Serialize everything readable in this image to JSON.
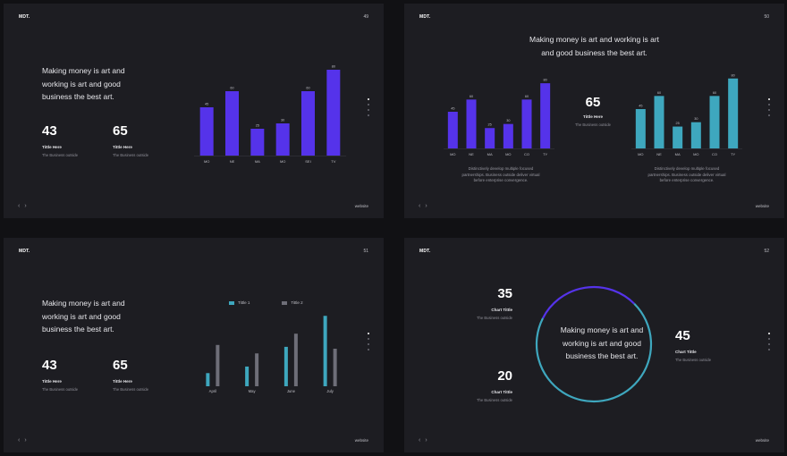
{
  "slides": [
    {
      "logo": "MDT.",
      "page": "49",
      "headline": [
        "Making money is art and",
        "working is art and good",
        "business the best art."
      ],
      "stats": [
        {
          "num": "43",
          "title": "Tittle Here",
          "sub": "The Business outside"
        },
        {
          "num": "65",
          "title": "Tittle Here",
          "sub": "The Business outside"
        }
      ],
      "website": "website",
      "nav": [
        "‹",
        "›"
      ]
    },
    {
      "logo": "MDT.",
      "page": "50",
      "headline": [
        "Making money is art and working is art",
        "and good business the best art."
      ],
      "stat": {
        "num": "65",
        "title": "Tittle Here",
        "sub": "The Business outside"
      },
      "desc_left": [
        "Distinctively develop multiple focused",
        "partnerships. Business outside deliver virtual",
        "before enterprise convergence."
      ],
      "desc_right": [
        "Distinctively develop multiple focused",
        "partnerships. Business outside deliver virtual",
        "before enterprise convergence."
      ],
      "website": "website",
      "nav": [
        "‹",
        "›"
      ]
    },
    {
      "logo": "MDT.",
      "page": "51",
      "headline": [
        "Making money is art and",
        "working is art and good",
        "business the best art."
      ],
      "stats": [
        {
          "num": "43",
          "title": "Tittle Here",
          "sub": "The Business outside"
        },
        {
          "num": "65",
          "title": "Tittle Here",
          "sub": "The Business outside"
        }
      ],
      "legend": [
        "Tittle 1",
        "Tittle 2"
      ],
      "website": "website",
      "nav": [
        "‹",
        "›"
      ]
    },
    {
      "logo": "MDT.",
      "page": "52",
      "center": [
        "Making money is art and",
        "working is art and good",
        "business the best art."
      ],
      "stats": [
        {
          "num": "35",
          "title": "Chart Tittle",
          "sub": "The Business outside"
        },
        {
          "num": "20",
          "title": "Chart Tittle",
          "sub": "The Business outside"
        },
        {
          "num": "45",
          "title": "Chart Tittle",
          "sub": "The Business outside"
        }
      ],
      "website": "website",
      "nav": [
        "‹",
        "›"
      ]
    }
  ],
  "chart_data": [
    {
      "type": "bar",
      "categories": [
        "MO",
        "NE",
        "MA",
        "MO",
        "SEI",
        "TV"
      ],
      "values": [
        45,
        60,
        25,
        30,
        60,
        80
      ],
      "ylim": [
        0,
        90
      ],
      "colors": [
        "#5533ea"
      ]
    },
    {
      "type": "bar",
      "categories": [
        "MO",
        "NE",
        "MA",
        "MO",
        "CO",
        "TY"
      ],
      "values": [
        45,
        60,
        25,
        30,
        60,
        80
      ],
      "ylim": [
        0,
        90
      ],
      "colors": [
        "#5533ea"
      ]
    },
    {
      "type": "bar",
      "categories": [
        "MO",
        "NE",
        "MA",
        "MO",
        "CO",
        "TY"
      ],
      "values": [
        45,
        60,
        25,
        30,
        60,
        80
      ],
      "ylim": [
        0,
        90
      ],
      "colors": [
        "#3ea7be"
      ]
    },
    {
      "type": "bar",
      "categories": [
        "April",
        "May",
        "June",
        "July"
      ],
      "series": [
        {
          "name": "Tittle 1",
          "values": [
            14,
            21,
            42,
            75
          ],
          "color": "#3ea7be"
        },
        {
          "name": "Tittle 2",
          "values": [
            44,
            35,
            56,
            40
          ],
          "color": "#6e6e78"
        }
      ],
      "ylim": [
        0,
        80
      ]
    },
    {
      "type": "pie",
      "values": [
        30,
        70
      ],
      "colors": [
        "#5533ea",
        "#3ea7be"
      ]
    }
  ]
}
